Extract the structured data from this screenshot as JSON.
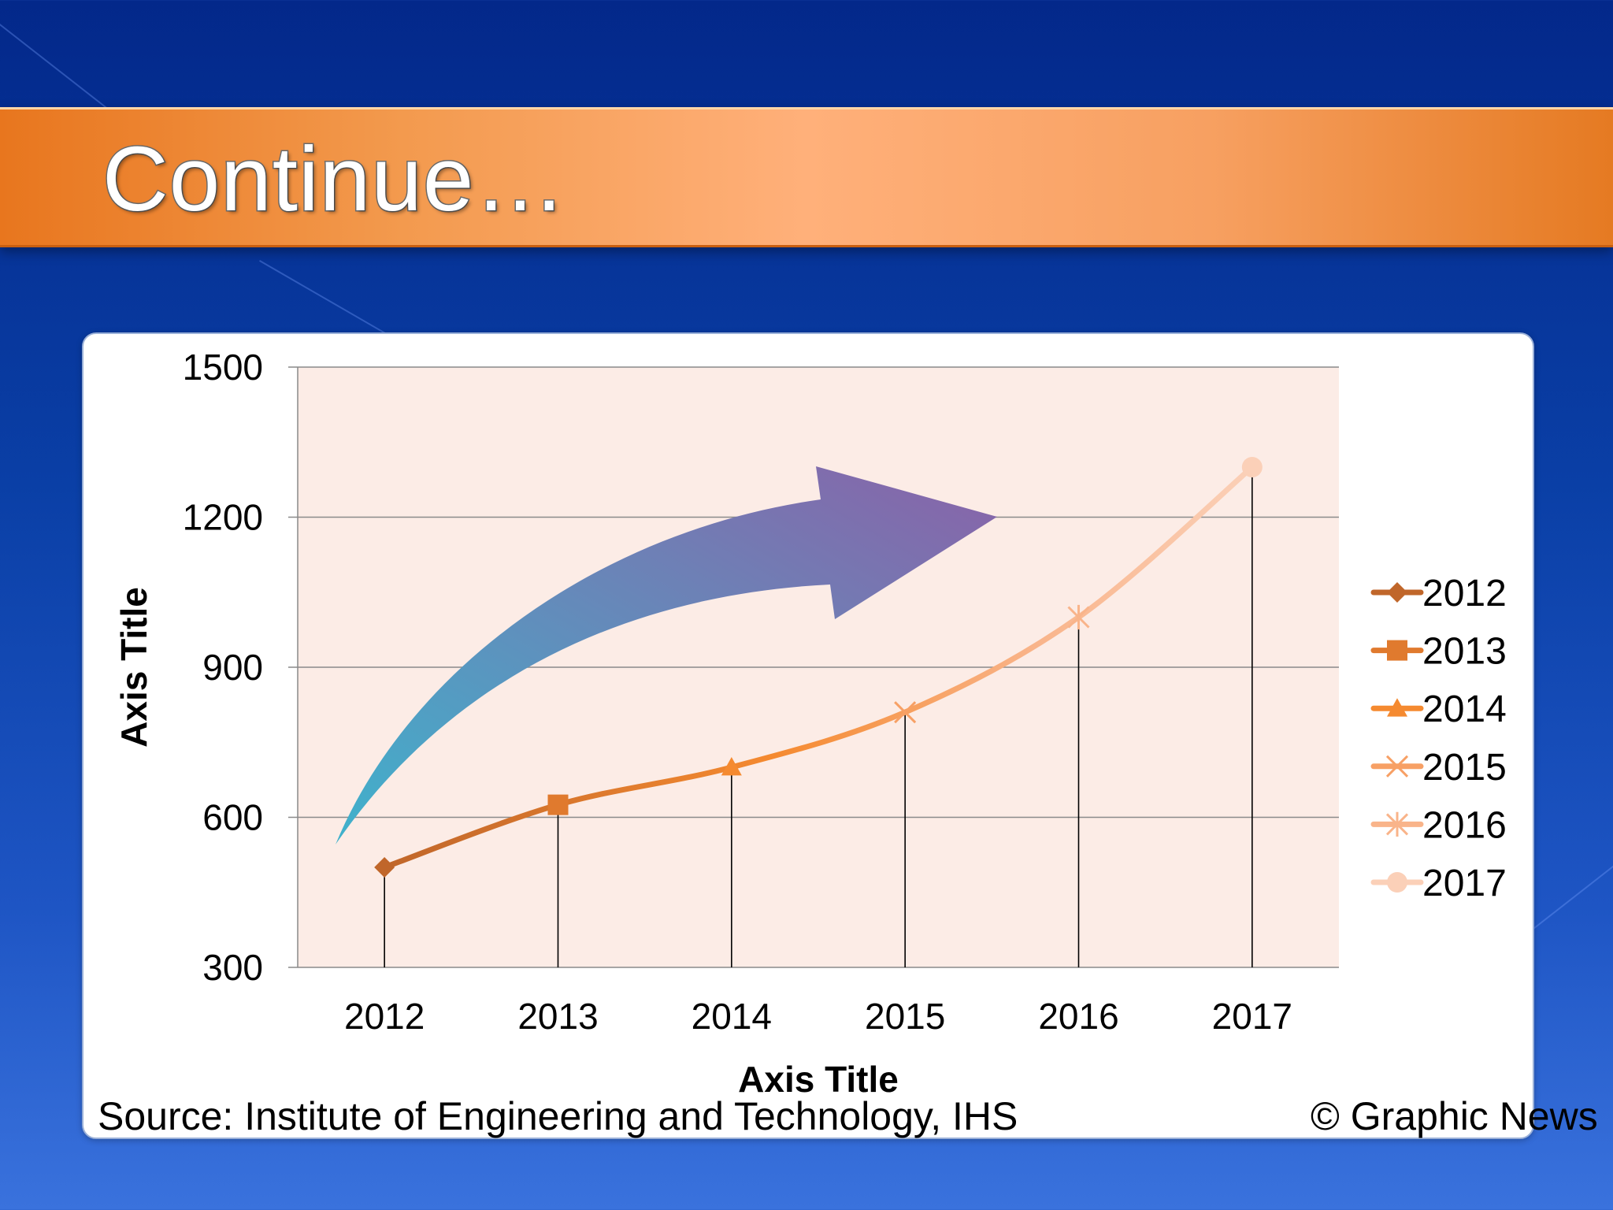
{
  "slide": {
    "title": "Continue…",
    "source": "Source: Institute of Engineering and Technology, IHS",
    "copyright": "© Graphic News"
  },
  "colors": {
    "background": "#0a3fa6",
    "title_band": "#f39a4e",
    "plot_area": "#fcece6",
    "arrow_start": "#3fb2cc",
    "arrow_end": "#8a62a8"
  },
  "chart_data": {
    "type": "line",
    "title": "",
    "xlabel": "Axis Title",
    "ylabel": "Axis Title",
    "categories": [
      "2012",
      "2013",
      "2014",
      "2015",
      "2016",
      "2017"
    ],
    "values": [
      500,
      625,
      700,
      810,
      1000,
      1300
    ],
    "ylim": [
      300,
      1500
    ],
    "yticks": [
      "300",
      "600",
      "900",
      "1200",
      "1500"
    ],
    "grid": true,
    "drop_lines": true,
    "legend_position": "right",
    "legend": [
      {
        "name": "2012",
        "marker": "diamond",
        "color": "#c0662a"
      },
      {
        "name": "2013",
        "marker": "square",
        "color": "#e07a2e"
      },
      {
        "name": "2014",
        "marker": "triangle",
        "color": "#f58a30"
      },
      {
        "name": "2015",
        "marker": "x",
        "color": "#f7a065"
      },
      {
        "name": "2016",
        "marker": "star",
        "color": "#f9b48a"
      },
      {
        "name": "2017",
        "marker": "circle",
        "color": "#fbd0b8"
      }
    ]
  }
}
